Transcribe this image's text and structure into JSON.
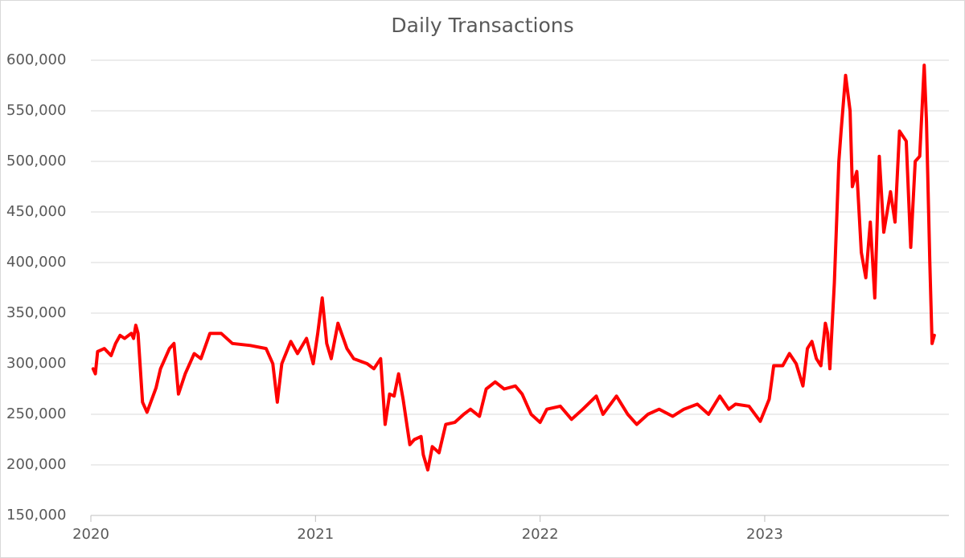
{
  "chart_data": {
    "type": "line",
    "title": "Daily Transactions",
    "xlim": [
      2020,
      2023.82
    ],
    "xticks": [
      2020,
      2021,
      2022,
      2023
    ],
    "ylim": [
      150000,
      600000
    ],
    "yticks": [
      {
        "value": 150000,
        "label": "150,000"
      },
      {
        "value": 200000,
        "label": "200,000"
      },
      {
        "value": 250000,
        "label": "250,000"
      },
      {
        "value": 300000,
        "label": "300,000"
      },
      {
        "value": 350000,
        "label": "350,000"
      },
      {
        "value": 400000,
        "label": "400,000"
      },
      {
        "value": 450000,
        "label": "450,000"
      },
      {
        "value": 500000,
        "label": "500,000"
      },
      {
        "value": 550000,
        "label": "550,000"
      },
      {
        "value": 600000,
        "label": "600,000"
      }
    ],
    "grid": true,
    "x": [
      2020.01,
      2020.02,
      2020.03,
      2020.06,
      2020.09,
      2020.11,
      2020.13,
      2020.15,
      2020.18,
      2020.19,
      2020.2,
      2020.21,
      2020.23,
      2020.25,
      2020.28,
      2020.29,
      2020.31,
      2020.35,
      2020.37,
      2020.39,
      2020.42,
      2020.46,
      2020.49,
      2020.53,
      2020.58,
      2020.63,
      2020.71,
      2020.78,
      2020.81,
      2020.83,
      2020.85,
      2020.89,
      2020.92,
      2020.96,
      2020.99,
      2021.01,
      2021.03,
      2021.05,
      2021.07,
      2021.1,
      2021.14,
      2021.17,
      2021.23,
      2021.26,
      2021.29,
      2021.31,
      2021.33,
      2021.35,
      2021.37,
      2021.39,
      2021.41,
      2021.42,
      2021.44,
      2021.47,
      2021.48,
      2021.5,
      2021.52,
      2021.55,
      2021.58,
      2021.62,
      2021.66,
      2021.69,
      2021.73,
      2021.76,
      2021.8,
      2021.84,
      2021.89,
      2021.92,
      2021.96,
      2022.0,
      2022.03,
      2022.09,
      2022.14,
      2022.19,
      2022.25,
      2022.28,
      2022.34,
      2022.39,
      2022.43,
      2022.48,
      2022.53,
      2022.59,
      2022.64,
      2022.7,
      2022.75,
      2022.8,
      2022.84,
      2022.87,
      2022.93,
      2022.98,
      2023.02,
      2023.04,
      2023.08,
      2023.11,
      2023.14,
      2023.17,
      2023.19,
      2023.21,
      2023.23,
      2023.25,
      2023.27,
      2023.28,
      2023.29,
      2023.31,
      2023.33,
      2023.34,
      2023.36,
      2023.38,
      2023.39,
      2023.41,
      2023.43,
      2023.45,
      2023.47,
      2023.49,
      2023.51,
      2023.53,
      2023.56,
      2023.58,
      2023.6,
      2023.63,
      2023.65,
      2023.67,
      2023.69,
      2023.71,
      2023.72,
      2023.735,
      2023.745,
      2023.755
    ],
    "series": [
      {
        "color": "#ff0000",
        "values": [
          295000,
          290000,
          312000,
          315000,
          308000,
          320000,
          328000,
          325000,
          330000,
          325000,
          338000,
          330000,
          262000,
          252000,
          270000,
          276000,
          295000,
          315000,
          320000,
          270000,
          290000,
          310000,
          305000,
          330000,
          330000,
          320000,
          318000,
          315000,
          300000,
          262000,
          300000,
          322000,
          310000,
          325000,
          300000,
          330000,
          365000,
          320000,
          305000,
          340000,
          315000,
          305000,
          300000,
          295000,
          305000,
          240000,
          270000,
          268000,
          290000,
          265000,
          235000,
          220000,
          225000,
          228000,
          210000,
          195000,
          218000,
          212000,
          240000,
          242000,
          250000,
          255000,
          248000,
          275000,
          282000,
          275000,
          278000,
          270000,
          250000,
          242000,
          255000,
          258000,
          245000,
          255000,
          268000,
          250000,
          268000,
          250000,
          240000,
          250000,
          255000,
          248000,
          255000,
          260000,
          250000,
          268000,
          255000,
          260000,
          258000,
          243000,
          265000,
          298000,
          298000,
          310000,
          300000,
          278000,
          315000,
          322000,
          305000,
          298000,
          340000,
          330000,
          295000,
          380000,
          500000,
          530000,
          585000,
          550000,
          475000,
          490000,
          410000,
          385000,
          440000,
          365000,
          505000,
          430000,
          470000,
          440000,
          530000,
          520000,
          415000,
          500000,
          505000,
          595000,
          540000,
          400000,
          320000,
          328000
        ]
      }
    ]
  }
}
